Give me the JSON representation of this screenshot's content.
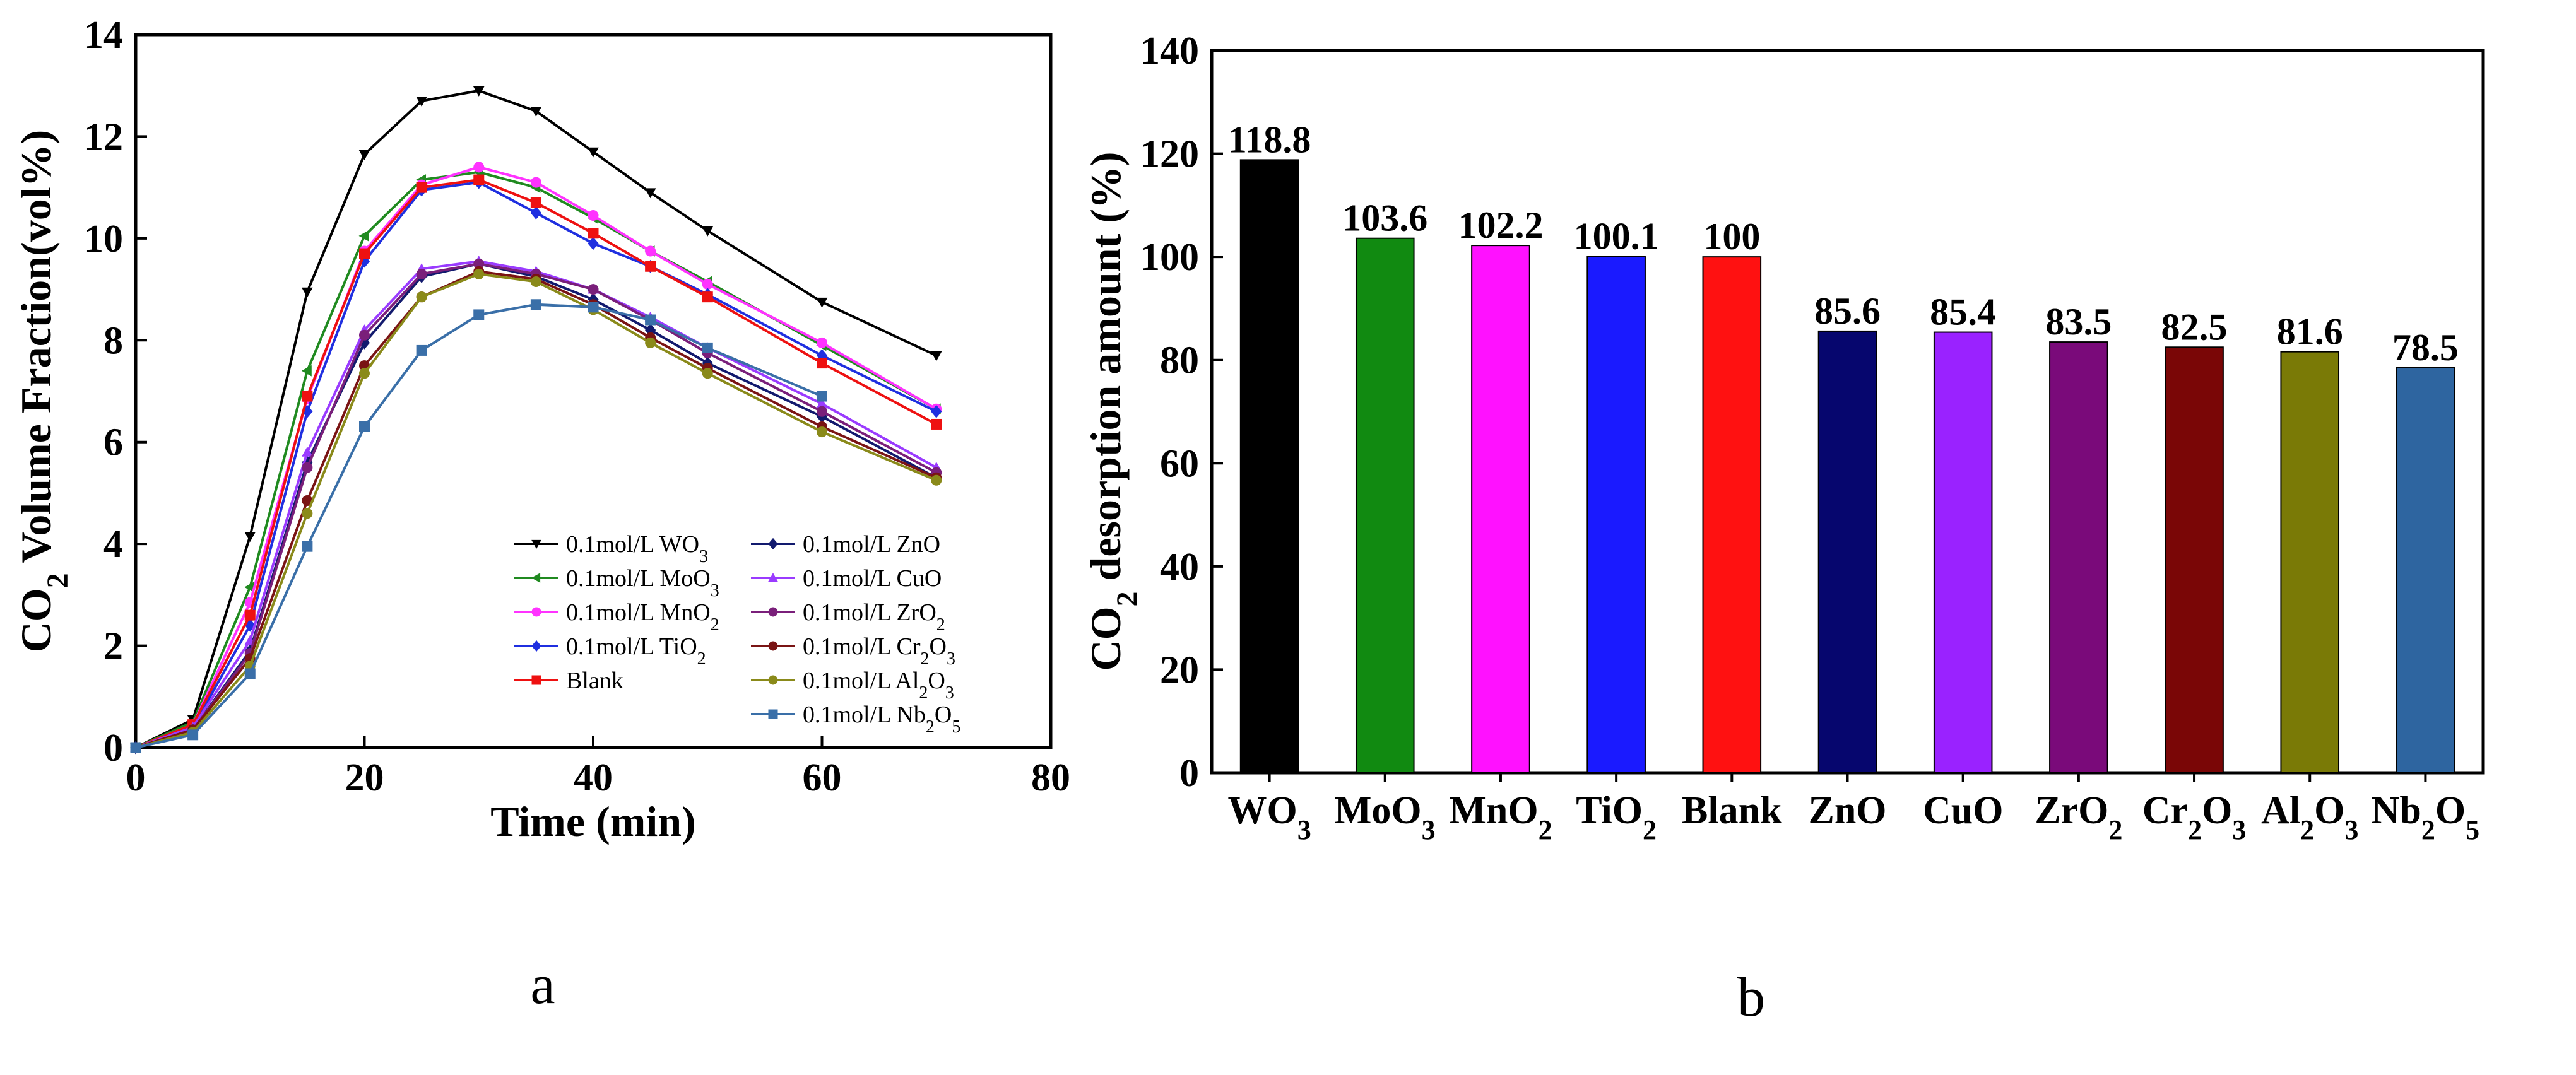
{
  "chart_data": [
    {
      "type": "line",
      "panel_label": "a",
      "xlabel": "Time (min)",
      "ylabel": "CO₂ Volume Fraction(vol%)",
      "xlim": [
        0,
        80
      ],
      "ylim": [
        0,
        14
      ],
      "xticks": [
        0,
        20,
        40,
        60,
        80
      ],
      "yticks": [
        0,
        2,
        4,
        6,
        8,
        10,
        12,
        14
      ],
      "grid": false,
      "legend_position": "bottom-right",
      "series": [
        {
          "name": "0.1mol/L WO₃",
          "color": "#000000",
          "marker": "triangle-down",
          "x": [
            0,
            5,
            10,
            15,
            20,
            25,
            30,
            35,
            40,
            45,
            50,
            60,
            70
          ],
          "y": [
            0,
            0.55,
            4.15,
            8.95,
            11.65,
            12.7,
            12.9,
            12.5,
            11.7,
            10.9,
            10.15,
            8.75,
            7.7
          ]
        },
        {
          "name": "0.1mol/L MoO₃",
          "color": "#208a20",
          "marker": "triangle-left",
          "x": [
            0,
            5,
            10,
            15,
            20,
            25,
            30,
            35,
            40,
            45,
            50,
            60,
            70
          ],
          "y": [
            0,
            0.5,
            3.15,
            7.4,
            10.05,
            11.15,
            11.3,
            11.0,
            10.4,
            9.75,
            9.15,
            7.9,
            6.65
          ]
        },
        {
          "name": "0.1mol/L MnO₂",
          "color": "#ff33ff",
          "marker": "circle",
          "x": [
            0,
            5,
            10,
            15,
            20,
            25,
            30,
            35,
            40,
            45,
            50,
            60,
            70
          ],
          "y": [
            0,
            0.45,
            2.85,
            6.85,
            9.75,
            11.05,
            11.4,
            11.1,
            10.45,
            9.75,
            9.1,
            7.95,
            6.65
          ]
        },
        {
          "name": "0.1mol/L TiO₂",
          "color": "#1f2fe0",
          "marker": "diamond",
          "x": [
            0,
            5,
            10,
            15,
            20,
            25,
            30,
            35,
            40,
            45,
            50,
            60,
            70
          ],
          "y": [
            0,
            0.4,
            2.4,
            6.6,
            9.55,
            10.95,
            11.1,
            10.5,
            9.9,
            9.45,
            8.9,
            7.7,
            6.6
          ]
        },
        {
          "name": "Blank",
          "color": "#ee1111",
          "marker": "square",
          "x": [
            0,
            5,
            10,
            15,
            20,
            25,
            30,
            35,
            40,
            45,
            50,
            60,
            70
          ],
          "y": [
            0,
            0.45,
            2.6,
            6.9,
            9.7,
            11.0,
            11.15,
            10.7,
            10.1,
            9.45,
            8.85,
            7.55,
            6.35
          ]
        },
        {
          "name": "0.1mol/L ZnO",
          "color": "#121a6e",
          "marker": "diamond",
          "x": [
            0,
            5,
            10,
            15,
            20,
            25,
            30,
            35,
            40,
            45,
            50,
            60,
            70
          ],
          "y": [
            0,
            0.35,
            1.9,
            5.6,
            7.95,
            9.25,
            9.5,
            9.25,
            8.8,
            8.2,
            7.55,
            6.5,
            5.3
          ]
        },
        {
          "name": "0.1mol/L CuO",
          "color": "#9a3bff",
          "marker": "triangle-up",
          "x": [
            0,
            5,
            10,
            15,
            20,
            25,
            30,
            35,
            40,
            45,
            50,
            60,
            70
          ],
          "y": [
            0,
            0.4,
            2.1,
            5.8,
            8.2,
            9.4,
            9.55,
            9.35,
            9.0,
            8.45,
            7.85,
            6.75,
            5.5
          ]
        },
        {
          "name": "0.1mol/L ZrO₂",
          "color": "#7a1f7a",
          "marker": "circle",
          "x": [
            0,
            5,
            10,
            15,
            20,
            25,
            30,
            35,
            40,
            45,
            50,
            60,
            70
          ],
          "y": [
            0,
            0.35,
            1.85,
            5.5,
            8.1,
            9.3,
            9.5,
            9.3,
            9.0,
            8.4,
            7.75,
            6.6,
            5.4
          ]
        },
        {
          "name": "0.1mol/L Cr₂O₃",
          "color": "#7a1414",
          "marker": "circle",
          "x": [
            0,
            5,
            10,
            15,
            20,
            25,
            30,
            35,
            40,
            45,
            50,
            60,
            70
          ],
          "y": [
            0,
            0.35,
            1.75,
            4.85,
            7.5,
            8.85,
            9.35,
            9.2,
            8.7,
            8.05,
            7.45,
            6.3,
            5.3
          ]
        },
        {
          "name": "0.1mol/L Al₂O₃",
          "color": "#8a8a1a",
          "marker": "circle",
          "x": [
            0,
            5,
            10,
            15,
            20,
            25,
            30,
            35,
            40,
            45,
            50,
            60,
            70
          ],
          "y": [
            0,
            0.3,
            1.6,
            4.6,
            7.35,
            8.85,
            9.3,
            9.15,
            8.6,
            7.95,
            7.35,
            6.2,
            5.25
          ]
        },
        {
          "name": "0.1mol/L Nb₂O₅",
          "color": "#3a6fa8",
          "marker": "square",
          "x": [
            0,
            5,
            10,
            15,
            20,
            25,
            30,
            35,
            40,
            45,
            50,
            60
          ],
          "y": [
            0,
            0.25,
            1.45,
            3.95,
            6.3,
            7.8,
            8.5,
            8.7,
            8.65,
            8.4,
            7.85,
            6.9
          ]
        }
      ]
    },
    {
      "type": "bar",
      "panel_label": "b",
      "xlabel": "",
      "ylabel": "CO₂ desorption amount (%)",
      "ylim": [
        0,
        140
      ],
      "yticks": [
        0,
        20,
        40,
        60,
        80,
        100,
        120,
        140
      ],
      "grid": false,
      "categories": [
        "WO₃",
        "MoO₃",
        "MnO₂",
        "TiO₂",
        "Blank",
        "ZnO",
        "CuO",
        "ZrO₂",
        "Cr₂O₃",
        "Al₂O₃",
        "Nb₂O₅"
      ],
      "values": [
        118.8,
        103.6,
        102.2,
        100.1,
        100,
        85.6,
        85.4,
        83.5,
        82.5,
        81.6,
        78.5
      ],
      "data_labels": [
        "118.8",
        "103.6",
        "102.2",
        "100.1",
        "100",
        "85.6",
        "85.4",
        "83.5",
        "82.5",
        "81.6",
        "78.5"
      ],
      "colors": [
        "#000000",
        "#118a11",
        "#ff11ff",
        "#1a1aff",
        "#ff1111",
        "#06066e",
        "#9a22ff",
        "#7a0a7a",
        "#7a0606",
        "#7a7a06",
        "#2e65a0"
      ]
    }
  ]
}
